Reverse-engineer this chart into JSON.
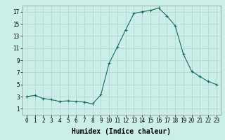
{
  "x": [
    0,
    1,
    2,
    3,
    4,
    5,
    6,
    7,
    8,
    9,
    10,
    11,
    12,
    13,
    14,
    15,
    16,
    17,
    18,
    19,
    20,
    21,
    22,
    23
  ],
  "y": [
    3,
    3.2,
    2.7,
    2.5,
    2.2,
    2.3,
    2.2,
    2.1,
    1.8,
    3.3,
    8.5,
    11.2,
    14.0,
    16.7,
    17.0,
    17.2,
    17.6,
    16.3,
    14.7,
    10.0,
    7.2,
    6.3,
    5.5,
    5.0
  ],
  "xlabel": "Humidex (Indice chaleur)",
  "bg_color": "#cceee8",
  "grid_color": "#aad4ce",
  "line_color": "#1a6a60",
  "ylim": [
    0,
    18
  ],
  "xlim": [
    -0.5,
    23.5
  ],
  "yticks": [
    1,
    3,
    5,
    7,
    9,
    11,
    13,
    15,
    17
  ],
  "xticks": [
    0,
    1,
    2,
    3,
    4,
    5,
    6,
    7,
    8,
    9,
    10,
    11,
    12,
    13,
    14,
    15,
    16,
    17,
    18,
    19,
    20,
    21,
    22,
    23
  ],
  "xtick_labels": [
    "0",
    "1",
    "2",
    "3",
    "4",
    "5",
    "6",
    "7",
    "8",
    "9",
    "10",
    "11",
    "12",
    "13",
    "14",
    "15",
    "16",
    "17",
    "18",
    "19",
    "20",
    "21",
    "22",
    "23"
  ],
  "tick_fontsize": 5.5,
  "xlabel_fontsize": 7
}
